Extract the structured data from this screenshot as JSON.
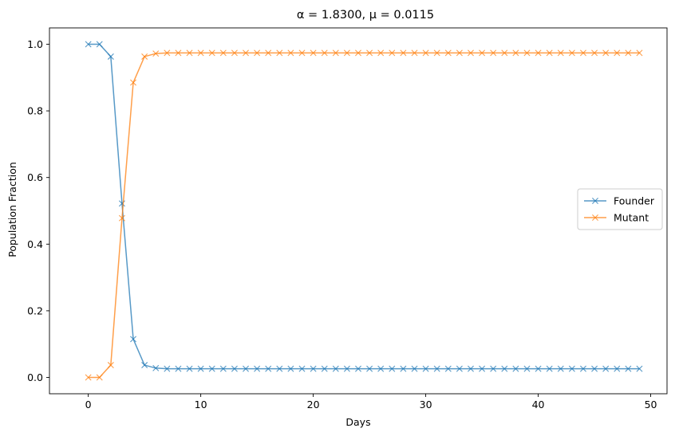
{
  "chart_data": {
    "type": "line",
    "title": "α = 1.8300, μ = 0.0115",
    "xlabel": "Days",
    "ylabel": "Population Fraction",
    "xlim": [
      -3.45,
      51.45
    ],
    "ylim": [
      -0.049,
      1.049
    ],
    "xticks": [
      0,
      10,
      20,
      30,
      40,
      50
    ],
    "xtick_labels": [
      "0",
      "10",
      "20",
      "30",
      "40",
      "50"
    ],
    "yticks": [
      0.0,
      0.2,
      0.4,
      0.6,
      0.8,
      1.0
    ],
    "ytick_labels": [
      "0.0",
      "0.2",
      "0.4",
      "0.6",
      "0.8",
      "1.0"
    ],
    "grid": false,
    "legend_position": "center-right",
    "x": [
      0,
      1,
      2,
      3,
      4,
      5,
      6,
      7,
      8,
      9,
      10,
      11,
      12,
      13,
      14,
      15,
      16,
      17,
      18,
      19,
      20,
      21,
      22,
      23,
      24,
      25,
      26,
      27,
      28,
      29,
      30,
      31,
      32,
      33,
      34,
      35,
      36,
      37,
      38,
      39,
      40,
      41,
      42,
      43,
      44,
      45,
      46,
      47,
      48,
      49
    ],
    "series": [
      {
        "name": "Founder",
        "color": "#1f77b4",
        "marker": "x",
        "values": [
          1.0,
          1.0,
          0.963,
          0.522,
          0.115,
          0.037,
          0.028,
          0.026,
          0.026,
          0.026,
          0.026,
          0.026,
          0.026,
          0.026,
          0.026,
          0.026,
          0.026,
          0.026,
          0.026,
          0.026,
          0.026,
          0.026,
          0.026,
          0.026,
          0.026,
          0.026,
          0.026,
          0.026,
          0.026,
          0.026,
          0.026,
          0.026,
          0.026,
          0.026,
          0.026,
          0.026,
          0.026,
          0.026,
          0.026,
          0.026,
          0.026,
          0.026,
          0.026,
          0.026,
          0.026,
          0.026,
          0.026,
          0.026,
          0.026,
          0.026
        ]
      },
      {
        "name": "Mutant",
        "color": "#ff7f0e",
        "marker": "x",
        "values": [
          0.0,
          0.0,
          0.037,
          0.478,
          0.885,
          0.963,
          0.972,
          0.974,
          0.974,
          0.974,
          0.974,
          0.974,
          0.974,
          0.974,
          0.974,
          0.974,
          0.974,
          0.974,
          0.974,
          0.974,
          0.974,
          0.974,
          0.974,
          0.974,
          0.974,
          0.974,
          0.974,
          0.974,
          0.974,
          0.974,
          0.974,
          0.974,
          0.974,
          0.974,
          0.974,
          0.974,
          0.974,
          0.974,
          0.974,
          0.974,
          0.974,
          0.974,
          0.974,
          0.974,
          0.974,
          0.974,
          0.974,
          0.974,
          0.974,
          0.974
        ]
      }
    ]
  }
}
